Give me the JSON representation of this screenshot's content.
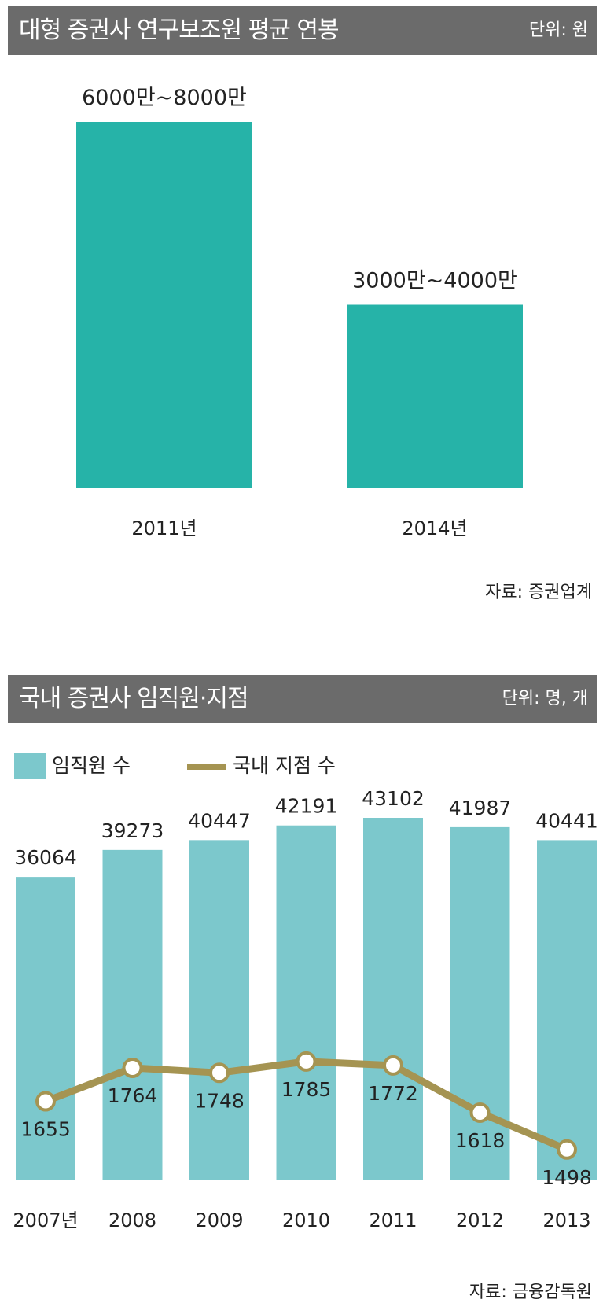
{
  "chart1": {
    "title": "대형 증권사 연구보조원 평균 연봉",
    "unit": "단위: 원",
    "source": "자료: 증권업계",
    "colors": {
      "bar": "#26b3a8",
      "header": "#6b6b6b"
    }
  },
  "chart2": {
    "title": "국내 증권사 임직원·지점",
    "unit": "단위: 명, 개",
    "source": "자료: 금융감독원",
    "legend": {
      "bars": "임직원 수",
      "line": "국내 지점 수"
    },
    "colors": {
      "bar": "#7cc8cc",
      "line": "#a59452",
      "marker": "#ffffff"
    }
  },
  "chart_data": [
    {
      "type": "bar",
      "categories": [
        "2011년",
        "2014년"
      ],
      "value_labels": [
        "6000만~8000만",
        "3000만~4000만"
      ],
      "ranges": [
        [
          60000000,
          80000000
        ],
        [
          30000000,
          40000000
        ]
      ],
      "title": "대형 증권사 연구보조원 평균 연봉",
      "xlabel": "",
      "ylabel": "",
      "ylim": [
        0,
        80000000
      ]
    },
    {
      "type": "bar",
      "categories": [
        "2007년",
        "2008",
        "2009",
        "2010",
        "2011",
        "2012",
        "2013"
      ],
      "series": [
        {
          "name": "임직원 수",
          "type": "bar",
          "values": [
            36064,
            39273,
            40447,
            42191,
            43102,
            41987,
            40441
          ]
        },
        {
          "name": "국내 지점 수",
          "type": "line",
          "values": [
            1655,
            1764,
            1748,
            1785,
            1772,
            1618,
            1498
          ]
        }
      ],
      "title": "국내 증권사 임직원·지점",
      "xlabel": "",
      "ylabel": "",
      "ylim": [
        0,
        43102
      ],
      "y2lim": [
        1400,
        1800
      ],
      "legend": "top-left"
    }
  ]
}
